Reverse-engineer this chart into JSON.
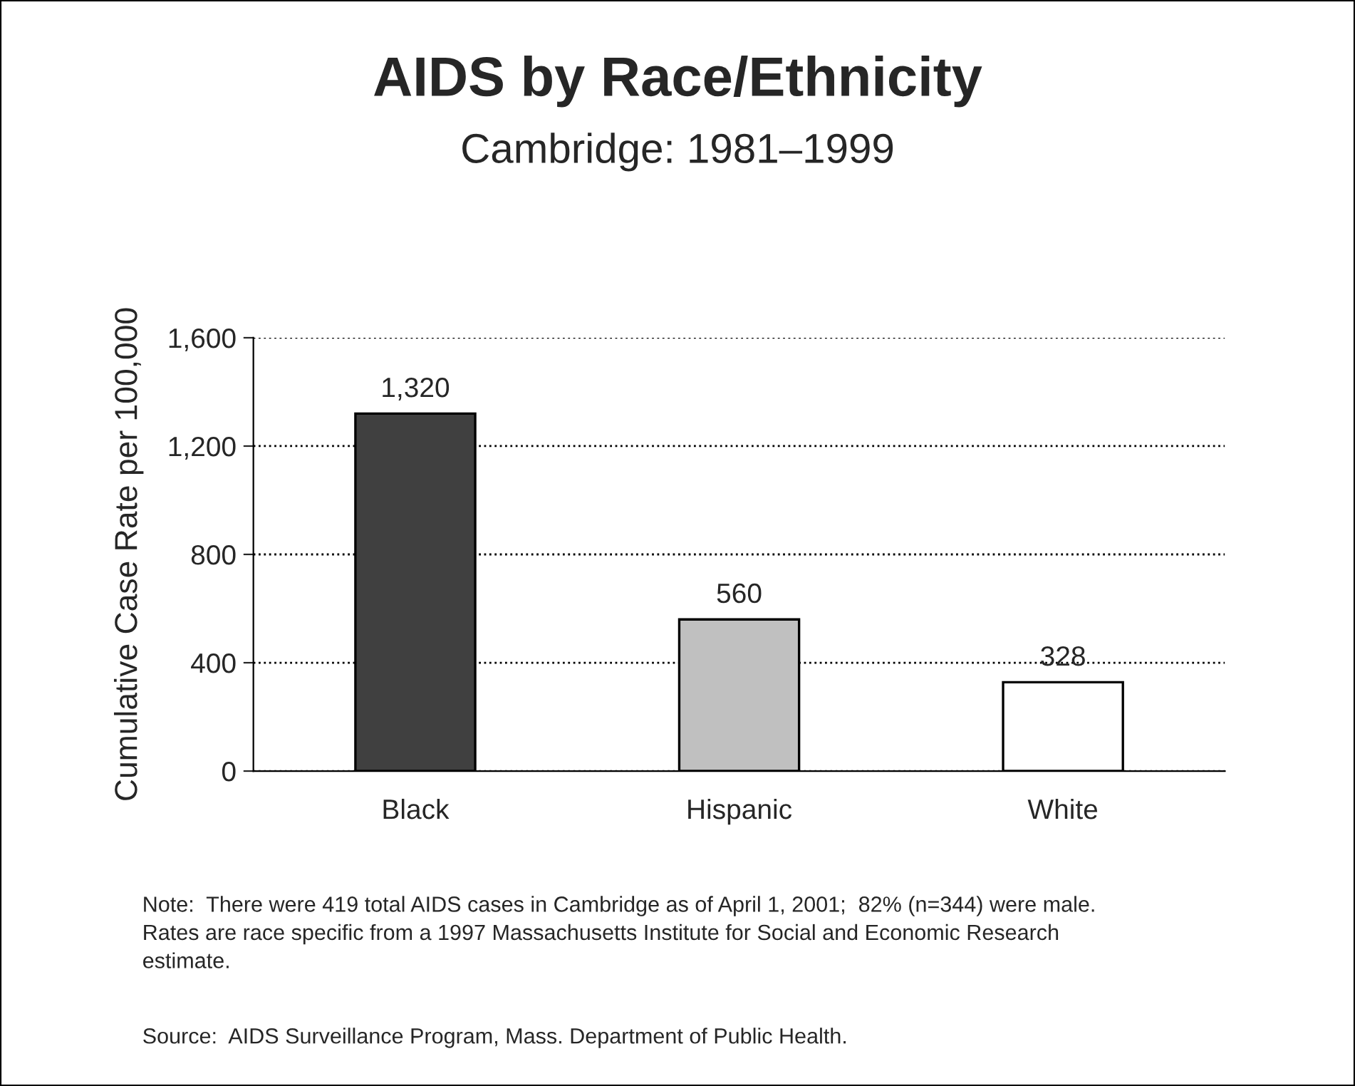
{
  "chart_data": {
    "type": "bar",
    "title": "AIDS by Race/Ethnicity",
    "subtitle": "Cambridge: 1981–1999",
    "ylabel": "Cumulative Case Rate per 100,000",
    "categories": [
      "Black",
      "Hispanic",
      "White"
    ],
    "values": [
      1320,
      560,
      328
    ],
    "colors": [
      "#404040",
      "#c0c0c0",
      "#ffffff"
    ],
    "ylim": [
      0,
      1600
    ],
    "yticks": [
      {
        "value": 0,
        "label": "0"
      },
      {
        "value": 400,
        "label": "400"
      },
      {
        "value": 800,
        "label": "800"
      },
      {
        "value": 1200,
        "label": "1,200"
      },
      {
        "value": 1600,
        "label": "1,600"
      }
    ],
    "value_labels": [
      "1,320",
      "560",
      "328"
    ],
    "grid": "y",
    "annotations": [
      "Note:  There were 419 total AIDS cases in Cambridge as of April 1, 2001;  82% (n=344) were male.\nRates are race specific from a 1997 Massachusetts Institute for Social and Economic Research\nestimate.",
      "Source:  AIDS Surveillance Program, Mass. Department of Public Health."
    ]
  }
}
